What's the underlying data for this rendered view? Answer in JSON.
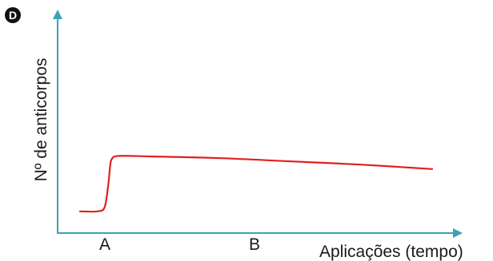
{
  "figure": {
    "panel_label": "D"
  },
  "colors": {
    "axis": "#3aa3b5",
    "curve": "#e02020",
    "text": "#1a1a1a",
    "badge": "#111111"
  },
  "chart_data": {
    "type": "line",
    "title": "",
    "xlabel": "Aplicações (tempo)",
    "ylabel": "Nº de anticorpos",
    "x_ticks": [
      "A",
      "B"
    ],
    "series": [
      {
        "points": [
          {
            "x": 0.0,
            "y": 0.1
          },
          {
            "x": 0.05,
            "y": 0.1
          },
          {
            "x": 0.07,
            "y": 0.12
          },
          {
            "x": 0.08,
            "y": 0.22
          },
          {
            "x": 0.085,
            "y": 0.3
          },
          {
            "x": 0.09,
            "y": 0.34
          },
          {
            "x": 0.11,
            "y": 0.355
          },
          {
            "x": 0.2,
            "y": 0.353
          },
          {
            "x": 0.4,
            "y": 0.345
          },
          {
            "x": 0.6,
            "y": 0.33
          },
          {
            "x": 0.8,
            "y": 0.315
          },
          {
            "x": 1.0,
            "y": 0.295
          }
        ]
      }
    ],
    "xlim": [
      0,
      1
    ],
    "ylim": [
      0,
      1
    ],
    "grid": false,
    "legend": "none"
  }
}
